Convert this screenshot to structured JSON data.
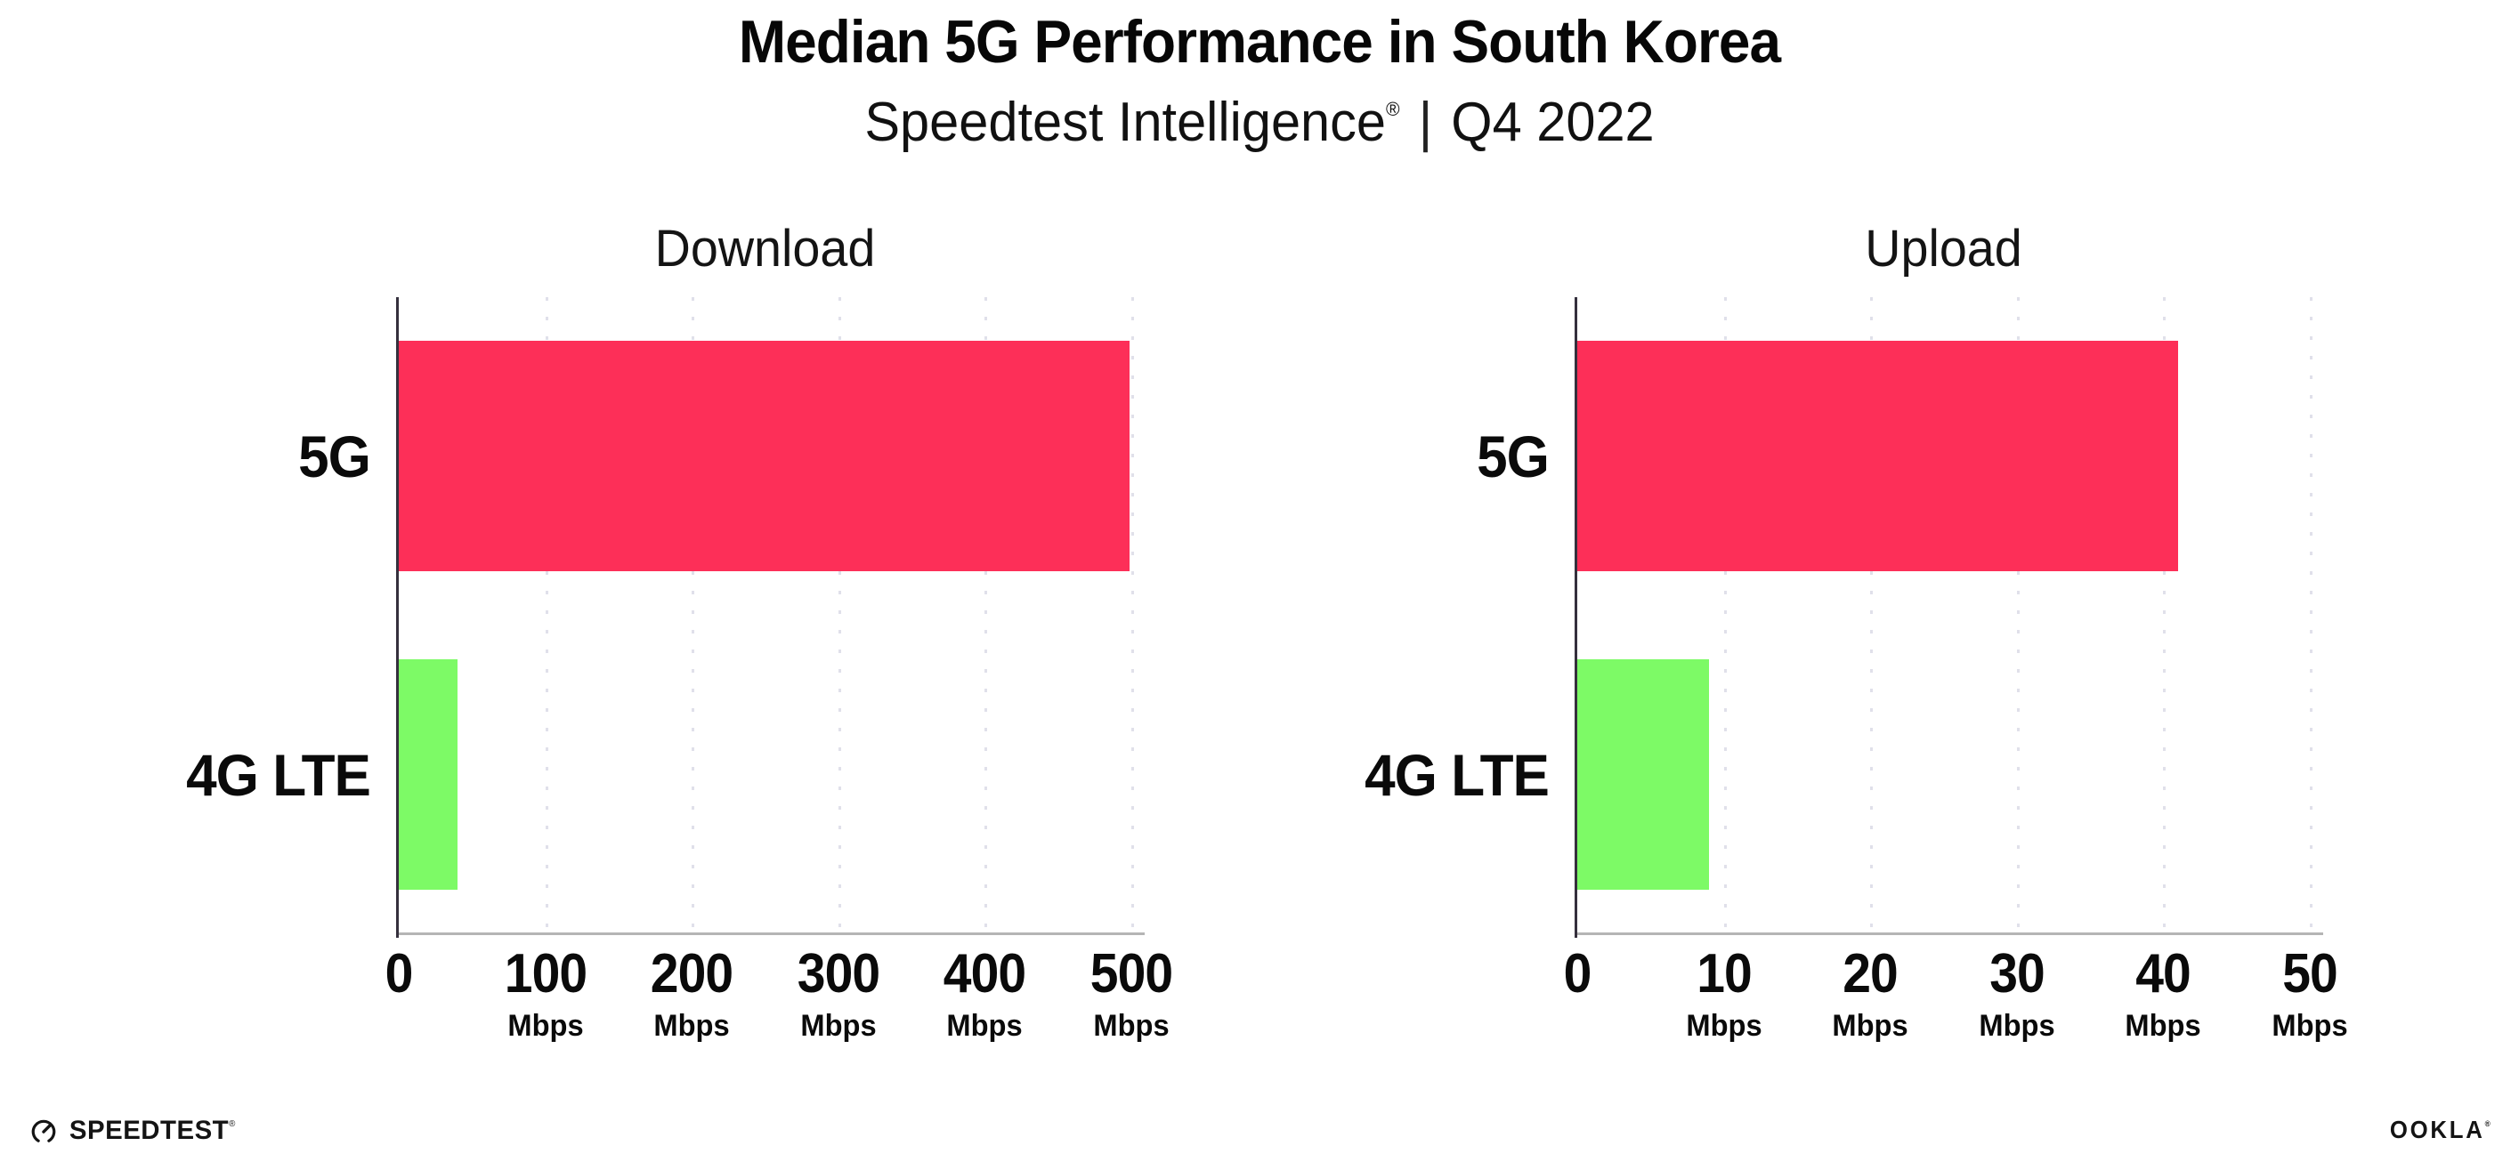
{
  "title": "Median 5G Performance in South Korea",
  "subtitle": {
    "product": "Speedtest Intelligence",
    "reg": "®",
    "separator": "|",
    "period": "Q4 2022"
  },
  "chart_data": [
    {
      "type": "bar",
      "orientation": "horizontal",
      "title": "Download",
      "categories": [
        "5G",
        "4G LTE"
      ],
      "values": [
        499,
        40
      ],
      "unit": "Mbps",
      "xlim": [
        0,
        500
      ],
      "ticks": [
        0,
        100,
        200,
        300,
        400,
        500
      ],
      "tick_unit": "Mbps",
      "bar_colors": [
        "#fd2f58",
        "#7dfa66"
      ],
      "grid": "dotted-vertical",
      "legend": "none"
    },
    {
      "type": "bar",
      "orientation": "horizontal",
      "title": "Upload",
      "categories": [
        "5G",
        "4G LTE"
      ],
      "values": [
        41,
        9
      ],
      "unit": "Mbps",
      "xlim": [
        0,
        50
      ],
      "ticks": [
        0,
        10,
        20,
        30,
        40,
        50
      ],
      "tick_unit": "Mbps",
      "bar_colors": [
        "#fd2f58",
        "#7dfa66"
      ],
      "grid": "dotted-vertical",
      "legend": "none"
    }
  ],
  "footer": {
    "speedtest_wordmark": "SPEEDTEST",
    "speedtest_reg": "®",
    "ookla_wordmark": "OOKLA",
    "ookla_reg": "®"
  },
  "colors": {
    "bar_5g": "#fd2f58",
    "bar_4g_lte": "#7dfa66",
    "gridline": "#e0e0ea",
    "y_axis": "#35303d",
    "x_baseline": "#b5b5b5",
    "text": "#0b0b0b",
    "background": "#ffffff"
  }
}
